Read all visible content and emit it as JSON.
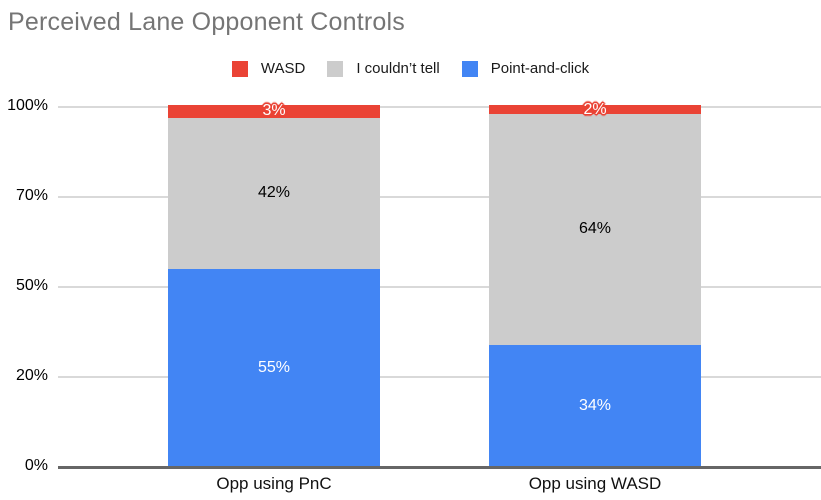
{
  "title": "Perceived Lane Opponent Controls",
  "legend": {
    "items": [
      {
        "label": "WASD",
        "color": "#ea4335"
      },
      {
        "label": "I couldn’t tell",
        "color": "#cccccc"
      },
      {
        "label": "Point-and-click",
        "color": "#4285f4"
      }
    ]
  },
  "chart_data": {
    "type": "bar",
    "subtype": "stacked-100-percent",
    "title": "Perceived Lane Opponent Controls",
    "categories": [
      "Opp using PnC",
      "Opp using WASD"
    ],
    "series": [
      {
        "name": "Point-and-click",
        "color": "#4285f4",
        "values": [
          55,
          34
        ],
        "label_color": "#ffffff"
      },
      {
        "name": "I couldn’t tell",
        "color": "#cccccc",
        "values": [
          42,
          64
        ],
        "label_color": "#000000"
      },
      {
        "name": "WASD",
        "color": "#ea4335",
        "values": [
          3,
          2
        ],
        "label_color": "#ffffff",
        "label_outline": "#ea4335"
      }
    ],
    "value_suffix": "%",
    "xlabel": "",
    "ylabel": "",
    "ylim": [
      0,
      100
    ],
    "y_tick_labels": [
      "100%",
      "70%",
      "50%",
      "20%",
      "0%"
    ],
    "grid": true,
    "legend_position": "top",
    "axis_colors": {
      "grid_color": "#d9d9d9",
      "baseline_color": "#666666",
      "tick_text_color": "#000000"
    }
  }
}
